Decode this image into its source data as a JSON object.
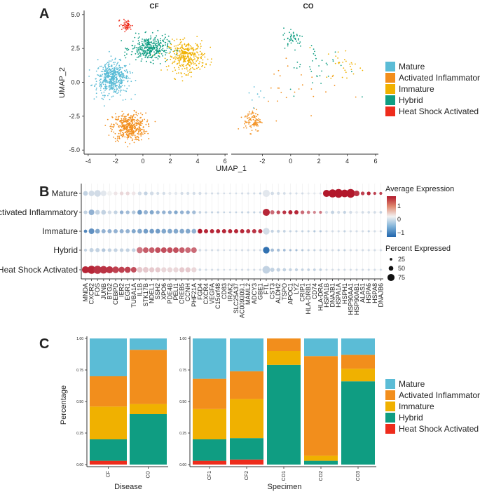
{
  "colors": {
    "Mature": "#5bbcd6",
    "Activated Inflammatory": "#f28e1c",
    "Immature": "#f0b100",
    "Hybrid": "#0f9d82",
    "Heat Shock Activated": "#ee2c1c"
  },
  "panels": {
    "a": "A",
    "b": "B",
    "c": "C"
  },
  "legend": {
    "clusters": [
      "Mature",
      "Activated Inflammatory",
      "Immature",
      "Hybrid",
      "Heat Shock Activated"
    ]
  },
  "chart_data": [
    {
      "type": "scatter",
      "panel": "A",
      "facets": [
        "CF",
        "CO"
      ],
      "xlabel": "UMAP_1",
      "ylabel": "UMAP_2",
      "xticks_cf": [
        "-4",
        "-2",
        "0",
        "2",
        "4",
        "6"
      ],
      "xticks_co": [
        "-2",
        "0",
        "2",
        "4",
        "6"
      ],
      "yticks": [
        "5.0",
        "2.5",
        "0.0",
        "-2.5",
        "-5.0"
      ],
      "cf_xlim": [
        -4.3,
        6.2
      ],
      "co_xlim": [
        -4.2,
        6.2
      ],
      "ylim": [
        -5.3,
        5.3
      ],
      "clusters": [
        {
          "name": "Mature",
          "facet": "CF",
          "cx": -2.2,
          "cy": 0.3,
          "sx": 1.0,
          "sy": 1.0,
          "n": 520
        },
        {
          "name": "Activated Inflammatory",
          "facet": "CF",
          "cx": -1.0,
          "cy": -3.3,
          "sx": 1.0,
          "sy": 0.85,
          "n": 430
        },
        {
          "name": "Immature",
          "facet": "CF",
          "cx": 3.2,
          "cy": 1.9,
          "sx": 1.1,
          "sy": 0.95,
          "n": 330
        },
        {
          "name": "Hybrid",
          "facet": "CF",
          "cx": 0.5,
          "cy": 2.5,
          "sx": 1.15,
          "sy": 0.75,
          "n": 340
        },
        {
          "name": "Heat Shock Activated",
          "facet": "CF",
          "cx": -1.2,
          "cy": 4.2,
          "sx": 0.35,
          "sy": 0.35,
          "n": 55
        },
        {
          "name": "Activated Inflammatory",
          "facet": "CO",
          "cx": -2.7,
          "cy": -2.8,
          "sx": 0.5,
          "sy": 0.7,
          "n": 95
        },
        {
          "name": "Hybrid",
          "facet": "CO",
          "cx": 0.2,
          "cy": 3.3,
          "sx": 0.6,
          "sy": 0.6,
          "n": 45
        },
        {
          "name": "Hybrid",
          "facet": "CO",
          "cx": 2.0,
          "cy": 1.0,
          "sx": 1.8,
          "sy": 1.6,
          "n": 35
        },
        {
          "name": "Immature",
          "facet": "CO",
          "cx": 3.8,
          "cy": 1.3,
          "sx": 1.2,
          "sy": 1.0,
          "n": 30
        },
        {
          "name": "Mature",
          "facet": "CO",
          "cx": -2.4,
          "cy": -1.0,
          "sx": 0.6,
          "sy": 0.9,
          "n": 8
        },
        {
          "name": "Activated Inflammatory",
          "facet": "CO",
          "cx": 0.5,
          "cy": 0.0,
          "sx": 2.5,
          "sy": 2.2,
          "n": 25
        }
      ]
    },
    {
      "type": "dot",
      "panel": "B",
      "rows": [
        "Mature",
        "Activated Inflammatory",
        "Immature",
        "Hybrid",
        "Heat Shock Activated"
      ],
      "genes": [
        "MNDA",
        "CXCR2",
        "FOS",
        "JUNB",
        "BTG2",
        "CEBPD",
        "IER2",
        "EGR1",
        "TUBA1A",
        "IL1B",
        "STK17B",
        "NDEL1",
        "SSH2",
        "XPO6",
        "PDE4B",
        "PELI1",
        "CREB5",
        "CCNH",
        "PHF21A",
        "FGD4",
        "CXCR4",
        "VEGFA",
        "C15orf48",
        "CD83",
        "IRAK2",
        "SLC25A37",
        "AC009309.1",
        "MAML2",
        "ADCY3",
        "GBE1",
        "FTL",
        "CST3",
        "ALDH2",
        "TSPO",
        "APOC1",
        "LYZ",
        "CRIP1",
        "HLA-DRB1",
        "CD74",
        "HLA-DRA",
        "HSPA1B",
        "DNAJB1",
        "HSPA1A",
        "HSPH1",
        "HSP90AA1",
        "HSP90AB1",
        "ALAS1",
        "HSPA6",
        "HSPA8",
        "DNAJB6"
      ],
      "avg_expression": [
        [
          -0.3,
          -0.2,
          -0.2,
          -0.1,
          0.0,
          0.1,
          0.2,
          0.2,
          0.1,
          -0.2,
          -0.3,
          -0.2,
          -0.2,
          -0.2,
          -0.1,
          -0.1,
          -0.2,
          -0.2,
          -0.2,
          -0.2,
          -0.2,
          -0.2,
          -0.2,
          -0.2,
          -0.2,
          -0.2,
          -0.2,
          -0.2,
          -0.2,
          -0.3,
          -0.1,
          -0.2,
          -0.2,
          -0.2,
          -0.2,
          -0.2,
          -0.2,
          -0.1,
          -0.1,
          -0.2,
          1.6,
          1.6,
          1.6,
          1.6,
          1.6,
          1.4,
          1.3,
          1.5,
          1.3,
          1.3
        ],
        [
          -0.3,
          -0.6,
          -0.3,
          -0.3,
          -0.2,
          -0.3,
          -0.6,
          -0.5,
          -0.4,
          -0.8,
          -0.6,
          -0.7,
          -0.6,
          -0.6,
          -0.6,
          -0.7,
          -0.6,
          -0.6,
          -0.5,
          -0.3,
          -0.3,
          -0.3,
          -0.3,
          -0.3,
          -0.3,
          -0.3,
          -0.3,
          -0.3,
          -0.3,
          -0.3,
          1.5,
          1.0,
          1.2,
          1.4,
          1.5,
          1.5,
          1.0,
          0.9,
          0.8,
          0.9,
          -0.2,
          -0.3,
          -0.2,
          -0.3,
          -0.2,
          -0.1,
          -0.2,
          -0.2,
          -0.2,
          -0.3
        ],
        [
          -1.0,
          -0.9,
          -0.7,
          -0.6,
          -0.6,
          -0.6,
          -0.6,
          -0.6,
          -0.7,
          -0.7,
          -0.8,
          -0.8,
          -0.8,
          -0.7,
          -0.7,
          -0.7,
          -0.7,
          -0.7,
          -0.6,
          1.6,
          1.5,
          1.5,
          1.5,
          1.5,
          1.5,
          1.5,
          1.5,
          1.4,
          1.4,
          1.4,
          -0.2,
          -0.3,
          -0.3,
          -0.3,
          -0.3,
          -0.3,
          -0.3,
          -0.3,
          -0.4,
          -0.4,
          -0.2,
          -0.2,
          -0.2,
          -0.3,
          -0.2,
          -0.2,
          -0.2,
          -0.3,
          -0.2,
          -0.3
        ],
        [
          -0.3,
          -0.3,
          -0.3,
          -0.4,
          -0.3,
          -0.3,
          -0.3,
          -0.3,
          -0.3,
          0.9,
          1.1,
          1.1,
          1.2,
          1.2,
          1.2,
          1.2,
          1.1,
          1.0,
          1.0,
          -0.2,
          -0.2,
          -0.2,
          -0.2,
          -0.2,
          -0.2,
          -0.2,
          -0.2,
          -0.2,
          -0.2,
          -0.2,
          -1.2,
          -0.5,
          -0.5,
          -0.5,
          -0.5,
          -0.5,
          -0.4,
          -0.3,
          -0.3,
          -0.3,
          -0.2,
          -0.2,
          -0.3,
          -0.3,
          -0.2,
          -0.2,
          -0.2,
          -0.2,
          -0.2,
          -0.2
        ],
        [
          1.5,
          1.5,
          1.4,
          1.4,
          1.4,
          1.3,
          1.3,
          1.3,
          1.2,
          0.3,
          0.3,
          0.3,
          0.3,
          0.2,
          0.2,
          0.2,
          0.3,
          0.3,
          0.2,
          -0.2,
          -0.2,
          -0.2,
          -0.2,
          -0.2,
          -0.2,
          -0.2,
          -0.2,
          -0.2,
          -0.2,
          -0.2,
          -0.3,
          -0.3,
          -0.3,
          -0.3,
          -0.3,
          -0.3,
          -0.3,
          -0.3,
          -0.3,
          -0.3,
          -0.2,
          -0.2,
          -0.2,
          -0.2,
          -0.2,
          -0.2,
          -0.2,
          -0.2,
          -0.2,
          -0.2
        ]
      ],
      "pct_expressed": [
        [
          50,
          60,
          70,
          60,
          50,
          40,
          40,
          40,
          40,
          40,
          40,
          40,
          30,
          30,
          30,
          30,
          30,
          30,
          30,
          30,
          20,
          20,
          20,
          15,
          15,
          15,
          20,
          20,
          20,
          20,
          75,
          35,
          30,
          25,
          20,
          20,
          20,
          20,
          20,
          20,
          75,
          85,
          90,
          80,
          90,
          60,
          40,
          40,
          30,
          30
        ],
        [
          40,
          60,
          50,
          50,
          40,
          40,
          40,
          40,
          40,
          50,
          45,
          45,
          40,
          40,
          40,
          40,
          40,
          40,
          40,
          25,
          20,
          20,
          20,
          15,
          15,
          15,
          20,
          20,
          20,
          20,
          75,
          45,
          40,
          40,
          45,
          45,
          40,
          35,
          30,
          30,
          30,
          35,
          30,
          30,
          30,
          25,
          25,
          25,
          25,
          25
        ],
        [
          35,
          60,
          50,
          45,
          45,
          45,
          45,
          45,
          45,
          50,
          50,
          50,
          50,
          50,
          50,
          50,
          50,
          50,
          50,
          50,
          45,
          45,
          45,
          45,
          45,
          45,
          45,
          45,
          45,
          45,
          70,
          30,
          30,
          25,
          20,
          20,
          20,
          20,
          20,
          20,
          20,
          20,
          20,
          20,
          20,
          20,
          20,
          20,
          20,
          20
        ],
        [
          30,
          45,
          45,
          40,
          40,
          40,
          40,
          40,
          40,
          65,
          60,
          60,
          60,
          60,
          60,
          60,
          60,
          60,
          60,
          25,
          20,
          20,
          20,
          15,
          15,
          15,
          20,
          20,
          20,
          20,
          70,
          35,
          30,
          25,
          20,
          20,
          20,
          20,
          20,
          20,
          20,
          20,
          20,
          20,
          20,
          20,
          20,
          20,
          20,
          20
        ],
        [
          75,
          85,
          85,
          80,
          75,
          70,
          65,
          65,
          60,
          60,
          60,
          55,
          55,
          55,
          55,
          55,
          55,
          55,
          55,
          25,
          20,
          20,
          20,
          15,
          15,
          15,
          20,
          20,
          20,
          20,
          80,
          45,
          40,
          35,
          30,
          30,
          25,
          25,
          25,
          25,
          20,
          20,
          20,
          20,
          20,
          20,
          20,
          20,
          20,
          20
        ]
      ],
      "color_legend_title": "Average Expression",
      "color_ticks": [
        "1",
        "0",
        "−1"
      ],
      "size_legend_title": "Percent Expressed",
      "size_ticks": [
        "25",
        "50",
        "75"
      ]
    },
    {
      "type": "bar",
      "panel": "C",
      "stacked": true,
      "ylabel": "Percentage",
      "yticks": [
        "1.00",
        "0.75",
        "0.50",
        "0.25",
        "0.00"
      ],
      "series_order": [
        "Heat Shock Activated",
        "Hybrid",
        "Immature",
        "Activated Inflammatory",
        "Mature"
      ],
      "groups": [
        {
          "xlabel": "Disease",
          "categories": [
            "CF",
            "CO"
          ],
          "values": {
            "Heat Shock Activated": [
              0.03,
              0.0
            ],
            "Hybrid": [
              0.17,
              0.4
            ],
            "Immature": [
              0.26,
              0.08
            ],
            "Activated Inflammatory": [
              0.24,
              0.43
            ],
            "Mature": [
              0.3,
              0.09
            ]
          }
        },
        {
          "xlabel": "Specimen",
          "categories": [
            "CF1",
            "CF2",
            "CO1",
            "CO2",
            "CO3"
          ],
          "values": {
            "Heat Shock Activated": [
              0.03,
              0.04,
              0.0,
              0.0,
              0.0
            ],
            "Hybrid": [
              0.17,
              0.17,
              0.79,
              0.03,
              0.66
            ],
            "Immature": [
              0.24,
              0.31,
              0.11,
              0.04,
              0.1
            ],
            "Activated Inflammatory": [
              0.24,
              0.22,
              0.1,
              0.79,
              0.11
            ],
            "Mature": [
              0.32,
              0.26,
              0.0,
              0.14,
              0.13
            ]
          }
        }
      ]
    }
  ]
}
